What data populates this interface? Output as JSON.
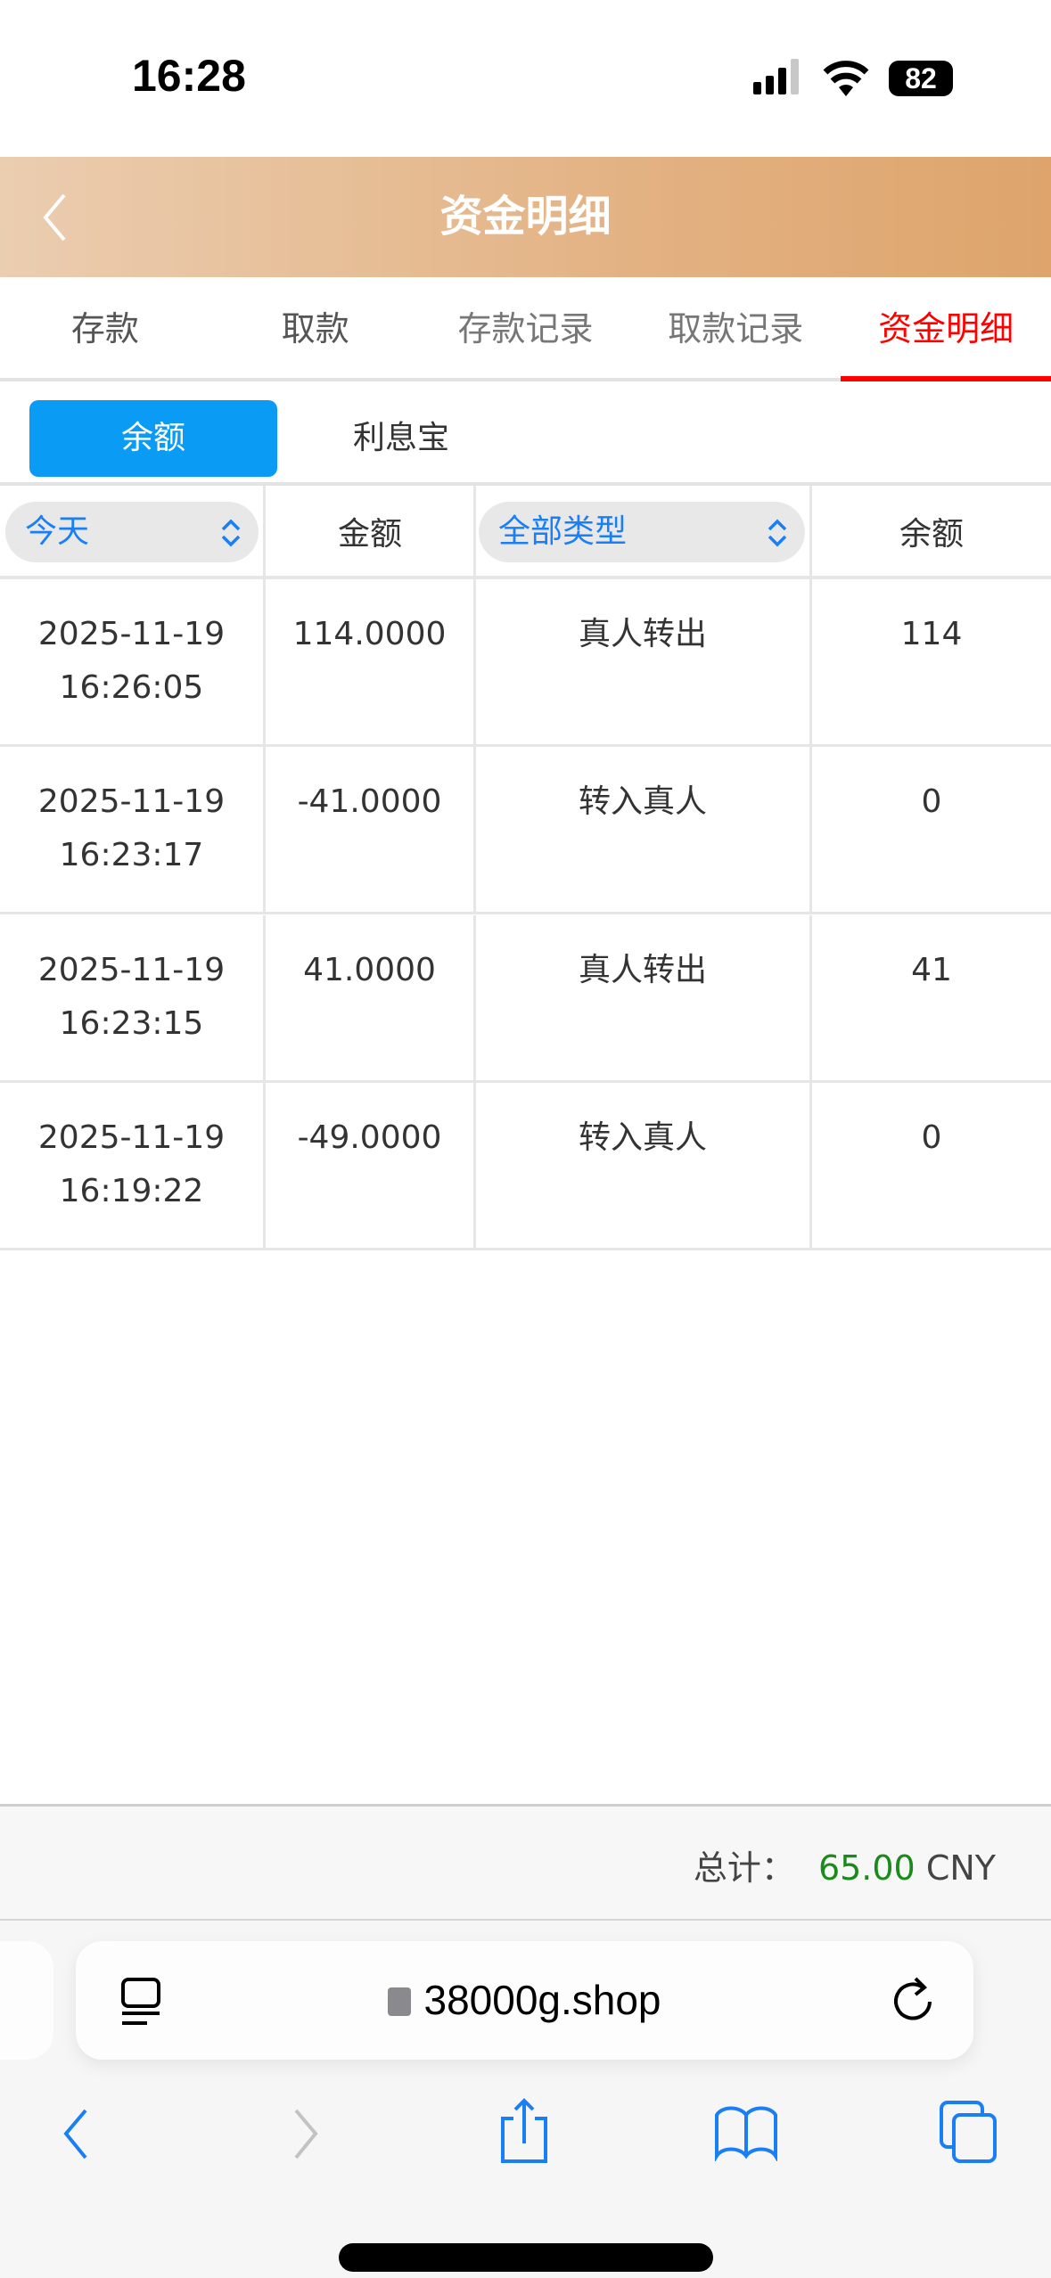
{
  "status_bar": {
    "time": "16:28",
    "battery": "82",
    "icons": [
      "signal-icon",
      "wifi-icon",
      "battery-icon"
    ]
  },
  "header": {
    "title": "资金明细",
    "back_icon": "chevron-left-icon",
    "gradient": [
      "#ebcdb0",
      "#dea46c"
    ]
  },
  "tabs": [
    {
      "label": "存款"
    },
    {
      "label": "取款"
    },
    {
      "label": "存款记录"
    },
    {
      "label": "取款记录"
    },
    {
      "label": "资金明细",
      "active": true
    }
  ],
  "sub_tabs": [
    {
      "label": "余额",
      "active": true
    },
    {
      "label": "利息宝"
    }
  ],
  "table": {
    "headers": {
      "date_filter": "今天",
      "amount": "金额",
      "type_filter": "全部类型",
      "balance": "余额"
    },
    "rows": [
      {
        "date": "2025-11-19",
        "time": "16:26:05",
        "amount": "114.0000",
        "type": "真人转出",
        "balance": "114"
      },
      {
        "date": "2025-11-19",
        "time": "16:23:17",
        "amount": "-41.0000",
        "type": "转入真人",
        "balance": "0"
      },
      {
        "date": "2025-11-19",
        "time": "16:23:15",
        "amount": "41.0000",
        "type": "真人转出",
        "balance": "41"
      },
      {
        "date": "2025-11-19",
        "time": "16:19:22",
        "amount": "-49.0000",
        "type": "转入真人",
        "balance": "0"
      }
    ]
  },
  "footer": {
    "total_label": "总计：",
    "total_value": "65.00",
    "currency": "CNY",
    "value_color": "#1a8a1a"
  },
  "browser": {
    "url": "38000g.shop"
  },
  "colors": {
    "accent_blue": "#0a9bf5",
    "active_tab": "#ff0000"
  }
}
